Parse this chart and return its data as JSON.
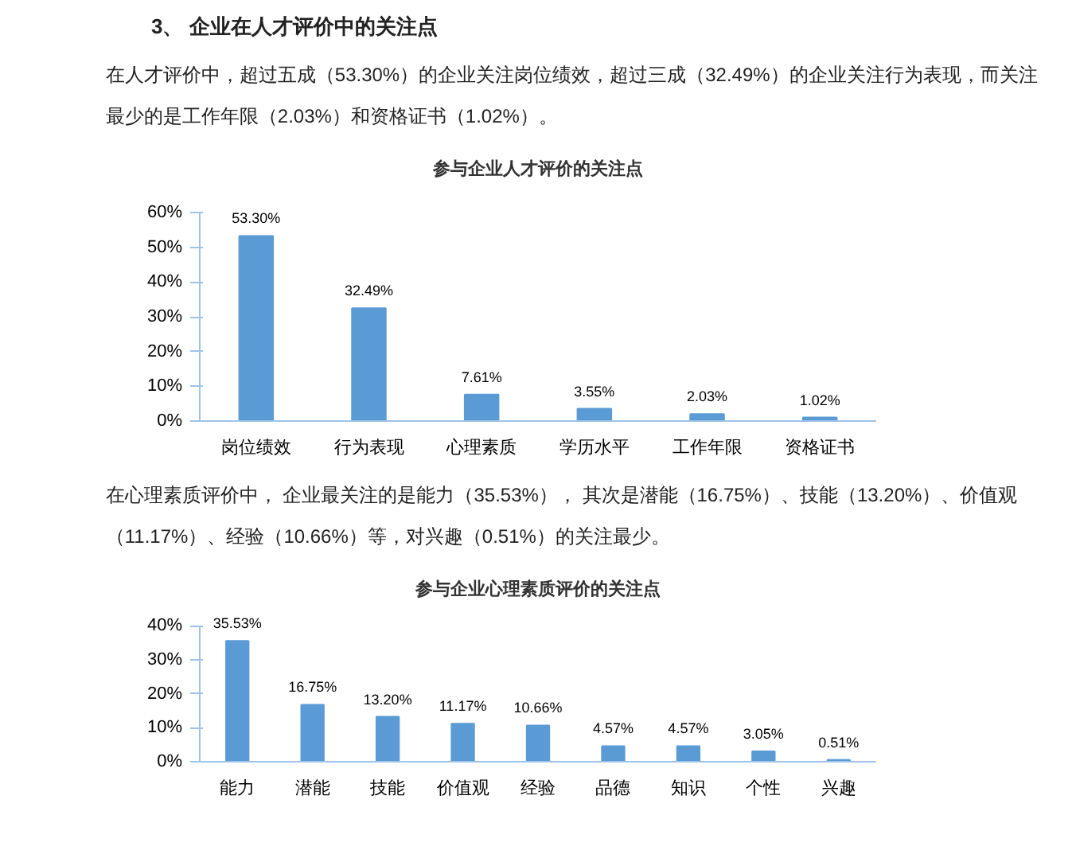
{
  "chart_data": [
    {
      "type": "bar",
      "title": "参与企业人才评价的关注点",
      "annotations": [
        "3、 企业在人才评价中的关注点",
        "在人才评价中，超过五成（53.30%）的企业关注岗位绩效，超过三成（32.49%）的企业关注行为表现，而关注最少的是工作年限（2.03%）和资格证书（1.02%）。"
      ],
      "categories": [
        "岗位绩效",
        "行为表现",
        "心理素质",
        "学历水平",
        "工作年限",
        "资格证书"
      ],
      "values": [
        53.3,
        32.49,
        7.61,
        3.55,
        2.03,
        1.02
      ],
      "value_labels": [
        "53.30%",
        "32.49%",
        "7.61%",
        "3.55%",
        "2.03%",
        "1.02%"
      ],
      "color": "#5b9bd5",
      "ylim": [
        0,
        60
      ],
      "yticks": [
        {
          "value": 0,
          "label": "0%"
        },
        {
          "value": 10,
          "label": "10%"
        },
        {
          "value": 20,
          "label": "20%"
        },
        {
          "value": 30,
          "label": "30%"
        },
        {
          "value": 40,
          "label": "40%"
        },
        {
          "value": 50,
          "label": "50%"
        },
        {
          "value": 60,
          "label": "60%"
        }
      ],
      "grid": false
    },
    {
      "type": "bar",
      "title": "参与企业心理素质评价的关注点",
      "annotations": [
        "在心理素质评价中， 企业最关注的是能力（35.53%）， 其次是潜能（16.75%）、技能（13.20%）、价值观（11.17%）、经验（10.66%）等，对兴趣（0.51%）的关注最少。"
      ],
      "categories": [
        "能力",
        "潜能",
        "技能",
        "价值观",
        "经验",
        "品德",
        "知识",
        "个性",
        "兴趣"
      ],
      "values": [
        35.53,
        16.75,
        13.2,
        11.17,
        10.66,
        4.57,
        4.57,
        3.05,
        0.51
      ],
      "value_labels": [
        "35.53%",
        "16.75%",
        "13.20%",
        "11.17%",
        "10.66%",
        "4.57%",
        "4.57%",
        "3.05%",
        "0.51%"
      ],
      "color": "#5b9bd5",
      "ylim": [
        0,
        40
      ],
      "yticks": [
        {
          "value": 0,
          "label": "0%"
        },
        {
          "value": 10,
          "label": "10%"
        },
        {
          "value": 20,
          "label": "20%"
        },
        {
          "value": 30,
          "label": "30%"
        },
        {
          "value": 40,
          "label": "40%"
        }
      ],
      "grid": false
    }
  ]
}
